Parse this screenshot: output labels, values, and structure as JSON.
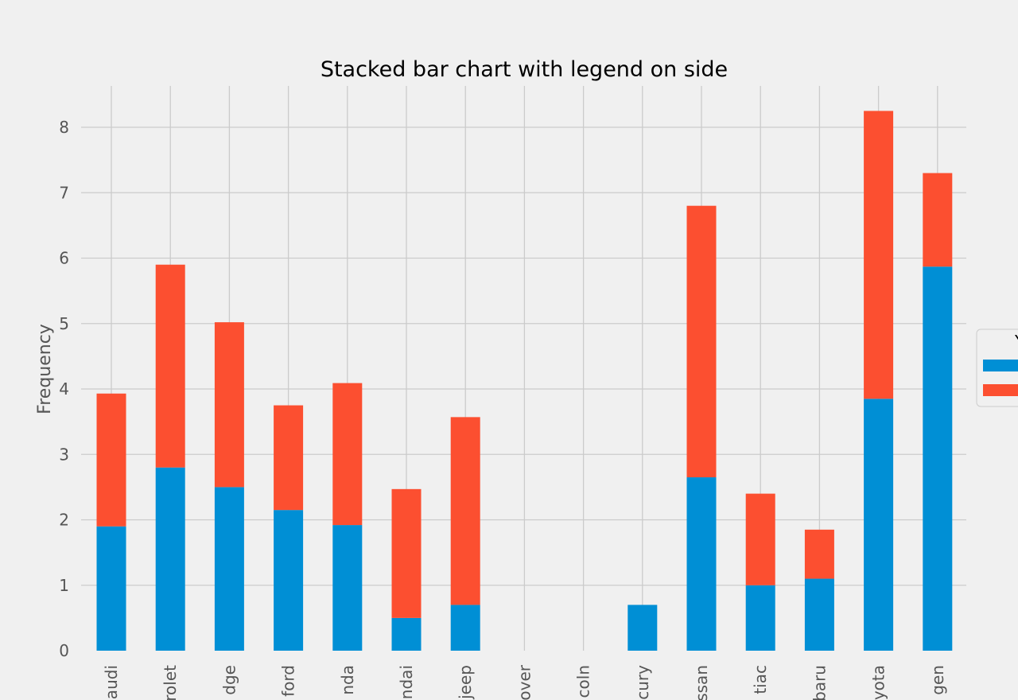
{
  "chart_data": {
    "type": "bar",
    "stacked": true,
    "title": "Stacked bar chart with legend on side",
    "xlabel": "",
    "ylabel": "Frequency",
    "ylim": [
      0,
      8.6
    ],
    "yticks": [
      0,
      1,
      2,
      3,
      4,
      5,
      6,
      7,
      8
    ],
    "grid": true,
    "legend": "right (partially cut off)",
    "legend_title": "Y",
    "categories": [
      "audi",
      "rolet",
      "dge",
      "ford",
      "nda",
      "ndai",
      "jeep",
      "over",
      "coln",
      "cury",
      "ssan",
      "tiac",
      "baru",
      "yota",
      "gen"
    ],
    "series": [
      {
        "color": "#008fd5",
        "values": [
          1.9,
          2.8,
          2.5,
          2.15,
          1.92,
          0.5,
          0.7,
          0,
          0,
          0.7,
          2.65,
          1.0,
          1.1,
          3.85,
          5.87
        ]
      },
      {
        "color": "#fc4f30",
        "values": [
          2.03,
          3.1,
          2.52,
          1.6,
          2.17,
          1.97,
          2.87,
          0,
          0,
          0,
          4.15,
          1.4,
          0.75,
          4.4,
          1.43
        ]
      }
    ]
  },
  "style": {
    "background": "#f0f0f0",
    "grid_color": "#cbcbcb",
    "label_color": "#555555"
  }
}
